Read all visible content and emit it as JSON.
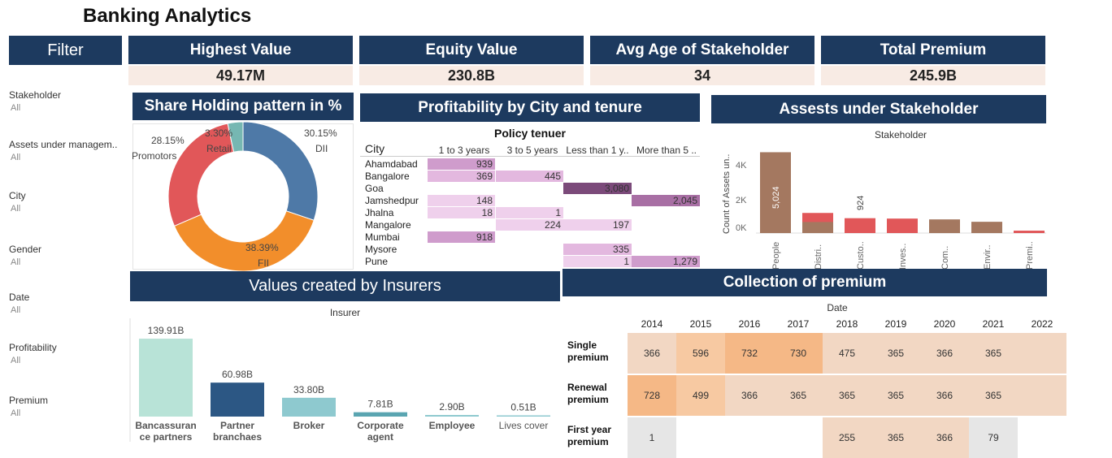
{
  "app_title": "Banking Analytics",
  "filter": {
    "header": "Filter",
    "items": [
      {
        "label": "Stakeholder",
        "value": "All"
      },
      {
        "label": "Assets under managem..",
        "value": "All"
      },
      {
        "label": "City",
        "value": "All"
      },
      {
        "label": "Gender",
        "value": "All"
      },
      {
        "label": "Date",
        "value": "All"
      },
      {
        "label": "Profitability",
        "value": "All"
      },
      {
        "label": "Premium",
        "value": "All"
      }
    ]
  },
  "kpis": [
    {
      "label": "Highest Value",
      "value": "49.17M"
    },
    {
      "label": "Equity Value",
      "value": "230.8B"
    },
    {
      "label": "Avg Age of Stakeholder",
      "value": "34"
    },
    {
      "label": "Total Premium",
      "value": "245.9B"
    }
  ],
  "share": {
    "title": "Share Holding pattern in %",
    "slices": [
      {
        "name": "DII",
        "pct": "30.15%",
        "value": 30.15,
        "color": "#4e79a7"
      },
      {
        "name": "FII",
        "pct": "38.39%",
        "value": 38.39,
        "color": "#f28e2b"
      },
      {
        "name": "Promotors",
        "pct": "28.15%",
        "value": 28.15,
        "color": "#e15759"
      },
      {
        "name": "Retail",
        "pct": "3.30%",
        "value": 3.3,
        "color": "#76b7b2"
      }
    ]
  },
  "profit": {
    "title": "Profitability by City and tenure",
    "col_group": "Policy tenuer",
    "row_header": "City",
    "columns": [
      "1 to 3 years",
      "3 to 5 years",
      "Less than 1 y..",
      "More than 5 .."
    ],
    "rows": [
      {
        "city": "Ahamdabad",
        "cells": [
          "939",
          "",
          "",
          ""
        ]
      },
      {
        "city": "Bangalore",
        "cells": [
          "369",
          "445",
          "",
          ""
        ]
      },
      {
        "city": "Goa",
        "cells": [
          "",
          "",
          "3,080",
          ""
        ]
      },
      {
        "city": "Jamshedpur",
        "cells": [
          "148",
          "",
          "",
          "2,045"
        ]
      },
      {
        "city": "Jhalna",
        "cells": [
          "18",
          "1",
          "",
          ""
        ]
      },
      {
        "city": "Mangalore",
        "cells": [
          "",
          "224",
          "197",
          ""
        ]
      },
      {
        "city": "Mumbai",
        "cells": [
          "918",
          "",
          "",
          ""
        ]
      },
      {
        "city": "Mysore",
        "cells": [
          "",
          "",
          "335",
          ""
        ]
      },
      {
        "city": "Pune",
        "cells": [
          "",
          "",
          "1",
          "1,279"
        ]
      }
    ]
  },
  "assets": {
    "title": "Assests under Stakeholder",
    "subtitle": "Stakeholder",
    "ylabel": "Count of Assets un..",
    "ticks": [
      "4K",
      "2K",
      "0K"
    ],
    "bar_labels": [
      "5,024",
      "924"
    ]
  },
  "insurers": {
    "title": "Values created by Insurers",
    "subtitle": "Insurer"
  },
  "premium": {
    "title": "Collection of premium",
    "subtitle": "Date",
    "years": [
      "2014",
      "2015",
      "2016",
      "2017",
      "2018",
      "2019",
      "2020",
      "2021",
      "2022"
    ],
    "rows": [
      {
        "label": "Single premium",
        "values": [
          "366",
          "596",
          "732",
          "730",
          "475",
          "365",
          "366",
          "365",
          ""
        ]
      },
      {
        "label": "Renewal premium",
        "values": [
          "728",
          "499",
          "366",
          "365",
          "365",
          "365",
          "366",
          "365",
          ""
        ]
      },
      {
        "label": "First year premium",
        "values": [
          "1",
          "",
          "",
          "",
          "255",
          "365",
          "366",
          "79",
          ""
        ]
      }
    ]
  },
  "chart_data": [
    {
      "type": "pie",
      "title": "Share Holding pattern in %",
      "categories": [
        "DII",
        "FII",
        "Promotors",
        "Retail"
      ],
      "values": [
        30.15,
        38.39,
        28.15,
        3.3
      ]
    },
    {
      "type": "bar",
      "title": "Assests under Stakeholder",
      "xlabel": "Stakeholder",
      "ylabel": "Count of Assets un..",
      "categories": [
        "People",
        "Distri..",
        "Custo..",
        "Inves..",
        "Com..",
        "Envir..",
        "Premi.."
      ],
      "values": [
        5024,
        1250,
        924,
        900,
        850,
        700,
        150
      ],
      "ylim": [
        0,
        5500
      ]
    },
    {
      "type": "bar",
      "title": "Values created by Insurers",
      "xlabel": "Insurer",
      "categories": [
        "Bancassurance partners",
        "Partner branchaes",
        "Broker",
        "Corporate agent",
        "Employee",
        "Lives cover"
      ],
      "values": [
        139.91,
        60.98,
        33.8,
        7.81,
        2.9,
        0.51
      ],
      "labels": [
        "139.91B",
        "60.98B",
        "33.80B",
        "7.81B",
        "2.90B",
        "0.51B"
      ],
      "colors": [
        "#b8e3d7",
        "#2c5784",
        "#8ec9cf",
        "#5aa5b1",
        "#8ec9cf",
        "#8ec9cf"
      ]
    }
  ]
}
